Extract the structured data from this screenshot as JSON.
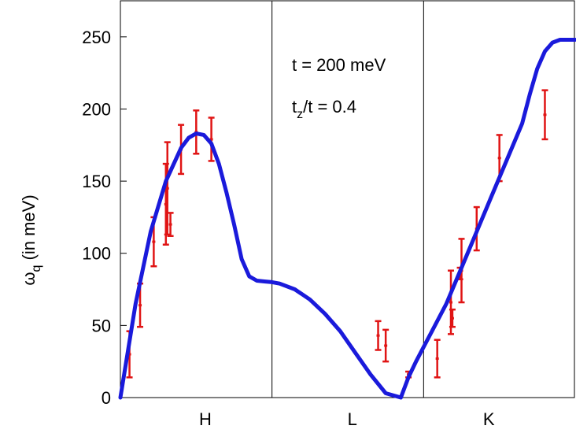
{
  "chart_data": {
    "type": "line",
    "title": "",
    "xlabel": "",
    "ylabel_parts": {
      "symbol": "ω",
      "subscript": "q",
      "rest": " (in meV)"
    },
    "ylim": [
      0,
      275
    ],
    "xlim": [
      0,
      3
    ],
    "y_ticks": [
      0,
      50,
      100,
      150,
      200,
      250
    ],
    "y_tick_labels": [
      "0",
      "50",
      "100",
      "150",
      "200",
      "250"
    ],
    "segment_boundaries": [
      1,
      2
    ],
    "segment_labels": [
      {
        "label": "H",
        "x": 0.56
      },
      {
        "label": "L",
        "x": 1.53
      },
      {
        "label": "K",
        "x": 2.43
      }
    ],
    "annotations": {
      "t_line": "t = 200 meV",
      "tz_prefix": "t",
      "tz_sub": "z",
      "tz_rest": "/t = 0.4"
    },
    "theory_curve": {
      "color": "#1a1adb",
      "x": [
        0,
        0.1,
        0.2,
        0.3,
        0.4,
        0.45,
        0.5,
        0.55,
        0.6,
        0.65,
        0.7,
        0.75,
        0.8,
        0.85,
        0.9,
        0.95,
        1.0,
        1.05,
        1.15,
        1.25,
        1.35,
        1.45,
        1.55,
        1.65,
        1.75,
        1.85,
        1.9,
        1.95,
        2.0,
        2.05,
        2.15,
        2.25,
        2.35,
        2.45,
        2.55,
        2.65,
        2.7,
        2.75,
        2.8,
        2.85,
        2.9,
        2.95,
        3.0
      ],
      "y": [
        0,
        65,
        115,
        150,
        173,
        180,
        183,
        182,
        176,
        162,
        142,
        120,
        96,
        84,
        81,
        80.5,
        80,
        79,
        75,
        68,
        58,
        46,
        31,
        16,
        3,
        0,
        14,
        25,
        35,
        45,
        65,
        90,
        115,
        140,
        165,
        190,
        210,
        228,
        240,
        246,
        248,
        248,
        248
      ],
      "_x_fixed_note": ""
    },
    "measurements": {
      "color": "#e01414",
      "points": [
        {
          "x": 0.06,
          "y": 30,
          "err": 16
        },
        {
          "x": 0.13,
          "y": 64,
          "err": 15
        },
        {
          "x": 0.22,
          "y": 108,
          "err": 17
        },
        {
          "x": 0.3,
          "y": 134,
          "err": 28
        },
        {
          "x": 0.31,
          "y": 145,
          "err": 32
        },
        {
          "x": 0.33,
          "y": 120,
          "err": 8
        },
        {
          "x": 0.4,
          "y": 172,
          "err": 17
        },
        {
          "x": 0.5,
          "y": 184,
          "err": 15
        },
        {
          "x": 0.6,
          "y": 179,
          "err": 15
        },
        {
          "x": 1.7,
          "y": 43,
          "err": 10
        },
        {
          "x": 1.75,
          "y": 36,
          "err": 11
        },
        {
          "x": 1.9,
          "y": 16,
          "err": 2
        },
        {
          "x": 2.09,
          "y": 27,
          "err": 13
        },
        {
          "x": 2.18,
          "y": 66,
          "err": 22
        },
        {
          "x": 2.19,
          "y": 55,
          "err": 6
        },
        {
          "x": 2.25,
          "y": 88,
          "err": 22
        },
        {
          "x": 2.24,
          "y": 86,
          "err": 4
        },
        {
          "x": 2.35,
          "y": 117,
          "err": 15
        },
        {
          "x": 2.5,
          "y": 166,
          "err": 16
        },
        {
          "x": 2.8,
          "y": 196,
          "err": 17
        }
      ]
    }
  }
}
